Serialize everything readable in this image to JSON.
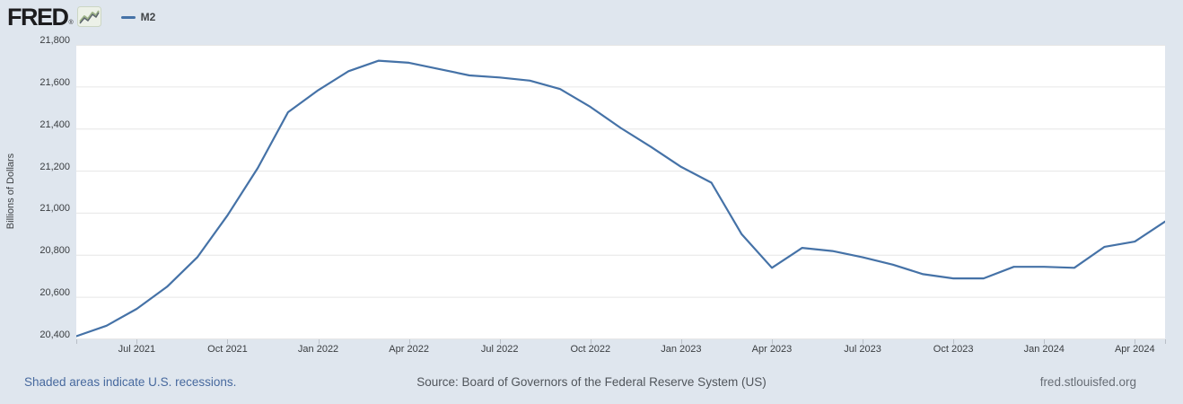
{
  "header": {
    "logo_text": "FRED",
    "registered_mark": "®",
    "legend": {
      "label": "M2",
      "dash_color": "#4572a7"
    }
  },
  "footer": {
    "recession_note": "Shaded areas indicate U.S. recessions.",
    "source": "Source: Board of Governors of the Federal Reserve System (US)",
    "site": "fred.stlouisfed.org"
  },
  "colors": {
    "page_bg": "#dfe6ee",
    "plot_bg": "#ffffff",
    "grid": "#e6e6e6",
    "line": "#4572a7",
    "tick_text": "#3a3d40"
  },
  "chart_data": {
    "type": "line",
    "title": "M2",
    "xlabel": "",
    "ylabel": "Billions of Dollars",
    "ylim": [
      20400,
      21800
    ],
    "y_tick_step": 200,
    "y_ticks": [
      "21,800",
      "21,600",
      "21,400",
      "21,200",
      "21,000",
      "20,800",
      "20,600",
      "20,400"
    ],
    "x_ticks": [
      "Jul 2021",
      "Oct 2021",
      "Jan 2022",
      "Apr 2022",
      "Jul 2022",
      "Oct 2022",
      "Jan 2023",
      "Apr 2023",
      "Jul 2023",
      "Oct 2023",
      "Jan 2024",
      "Apr 2024"
    ],
    "x": [
      "May 2021",
      "Jun 2021",
      "Jul 2021",
      "Aug 2021",
      "Sep 2021",
      "Oct 2021",
      "Nov 2021",
      "Dec 2021",
      "Jan 2022",
      "Feb 2022",
      "Mar 2022",
      "Apr 2022",
      "May 2022",
      "Jun 2022",
      "Jul 2022",
      "Aug 2022",
      "Sep 2022",
      "Oct 2022",
      "Nov 2022",
      "Dec 2022",
      "Jan 2023",
      "Feb 2023",
      "Mar 2023",
      "Apr 2023",
      "May 2023",
      "Jun 2023",
      "Jul 2023",
      "Aug 2023",
      "Sep 2023",
      "Oct 2023",
      "Nov 2023",
      "Dec 2023",
      "Jan 2024",
      "Feb 2024",
      "Mar 2024",
      "Apr 2024",
      "May 2024"
    ],
    "series": [
      {
        "name": "M2",
        "color": "#4572a7",
        "values": [
          20415,
          20465,
          20545,
          20650,
          20790,
          20990,
          21215,
          21480,
          21585,
          21675,
          21725,
          21715,
          21685,
          21655,
          21645,
          21630,
          21590,
          21505,
          21405,
          21315,
          21220,
          21145,
          20900,
          20740,
          20835,
          20820,
          20790,
          20755,
          20710,
          20690,
          20690,
          20745,
          20745,
          20740,
          20840,
          20865,
          20960
        ]
      }
    ],
    "grid": true,
    "legend_position": "top-left"
  }
}
